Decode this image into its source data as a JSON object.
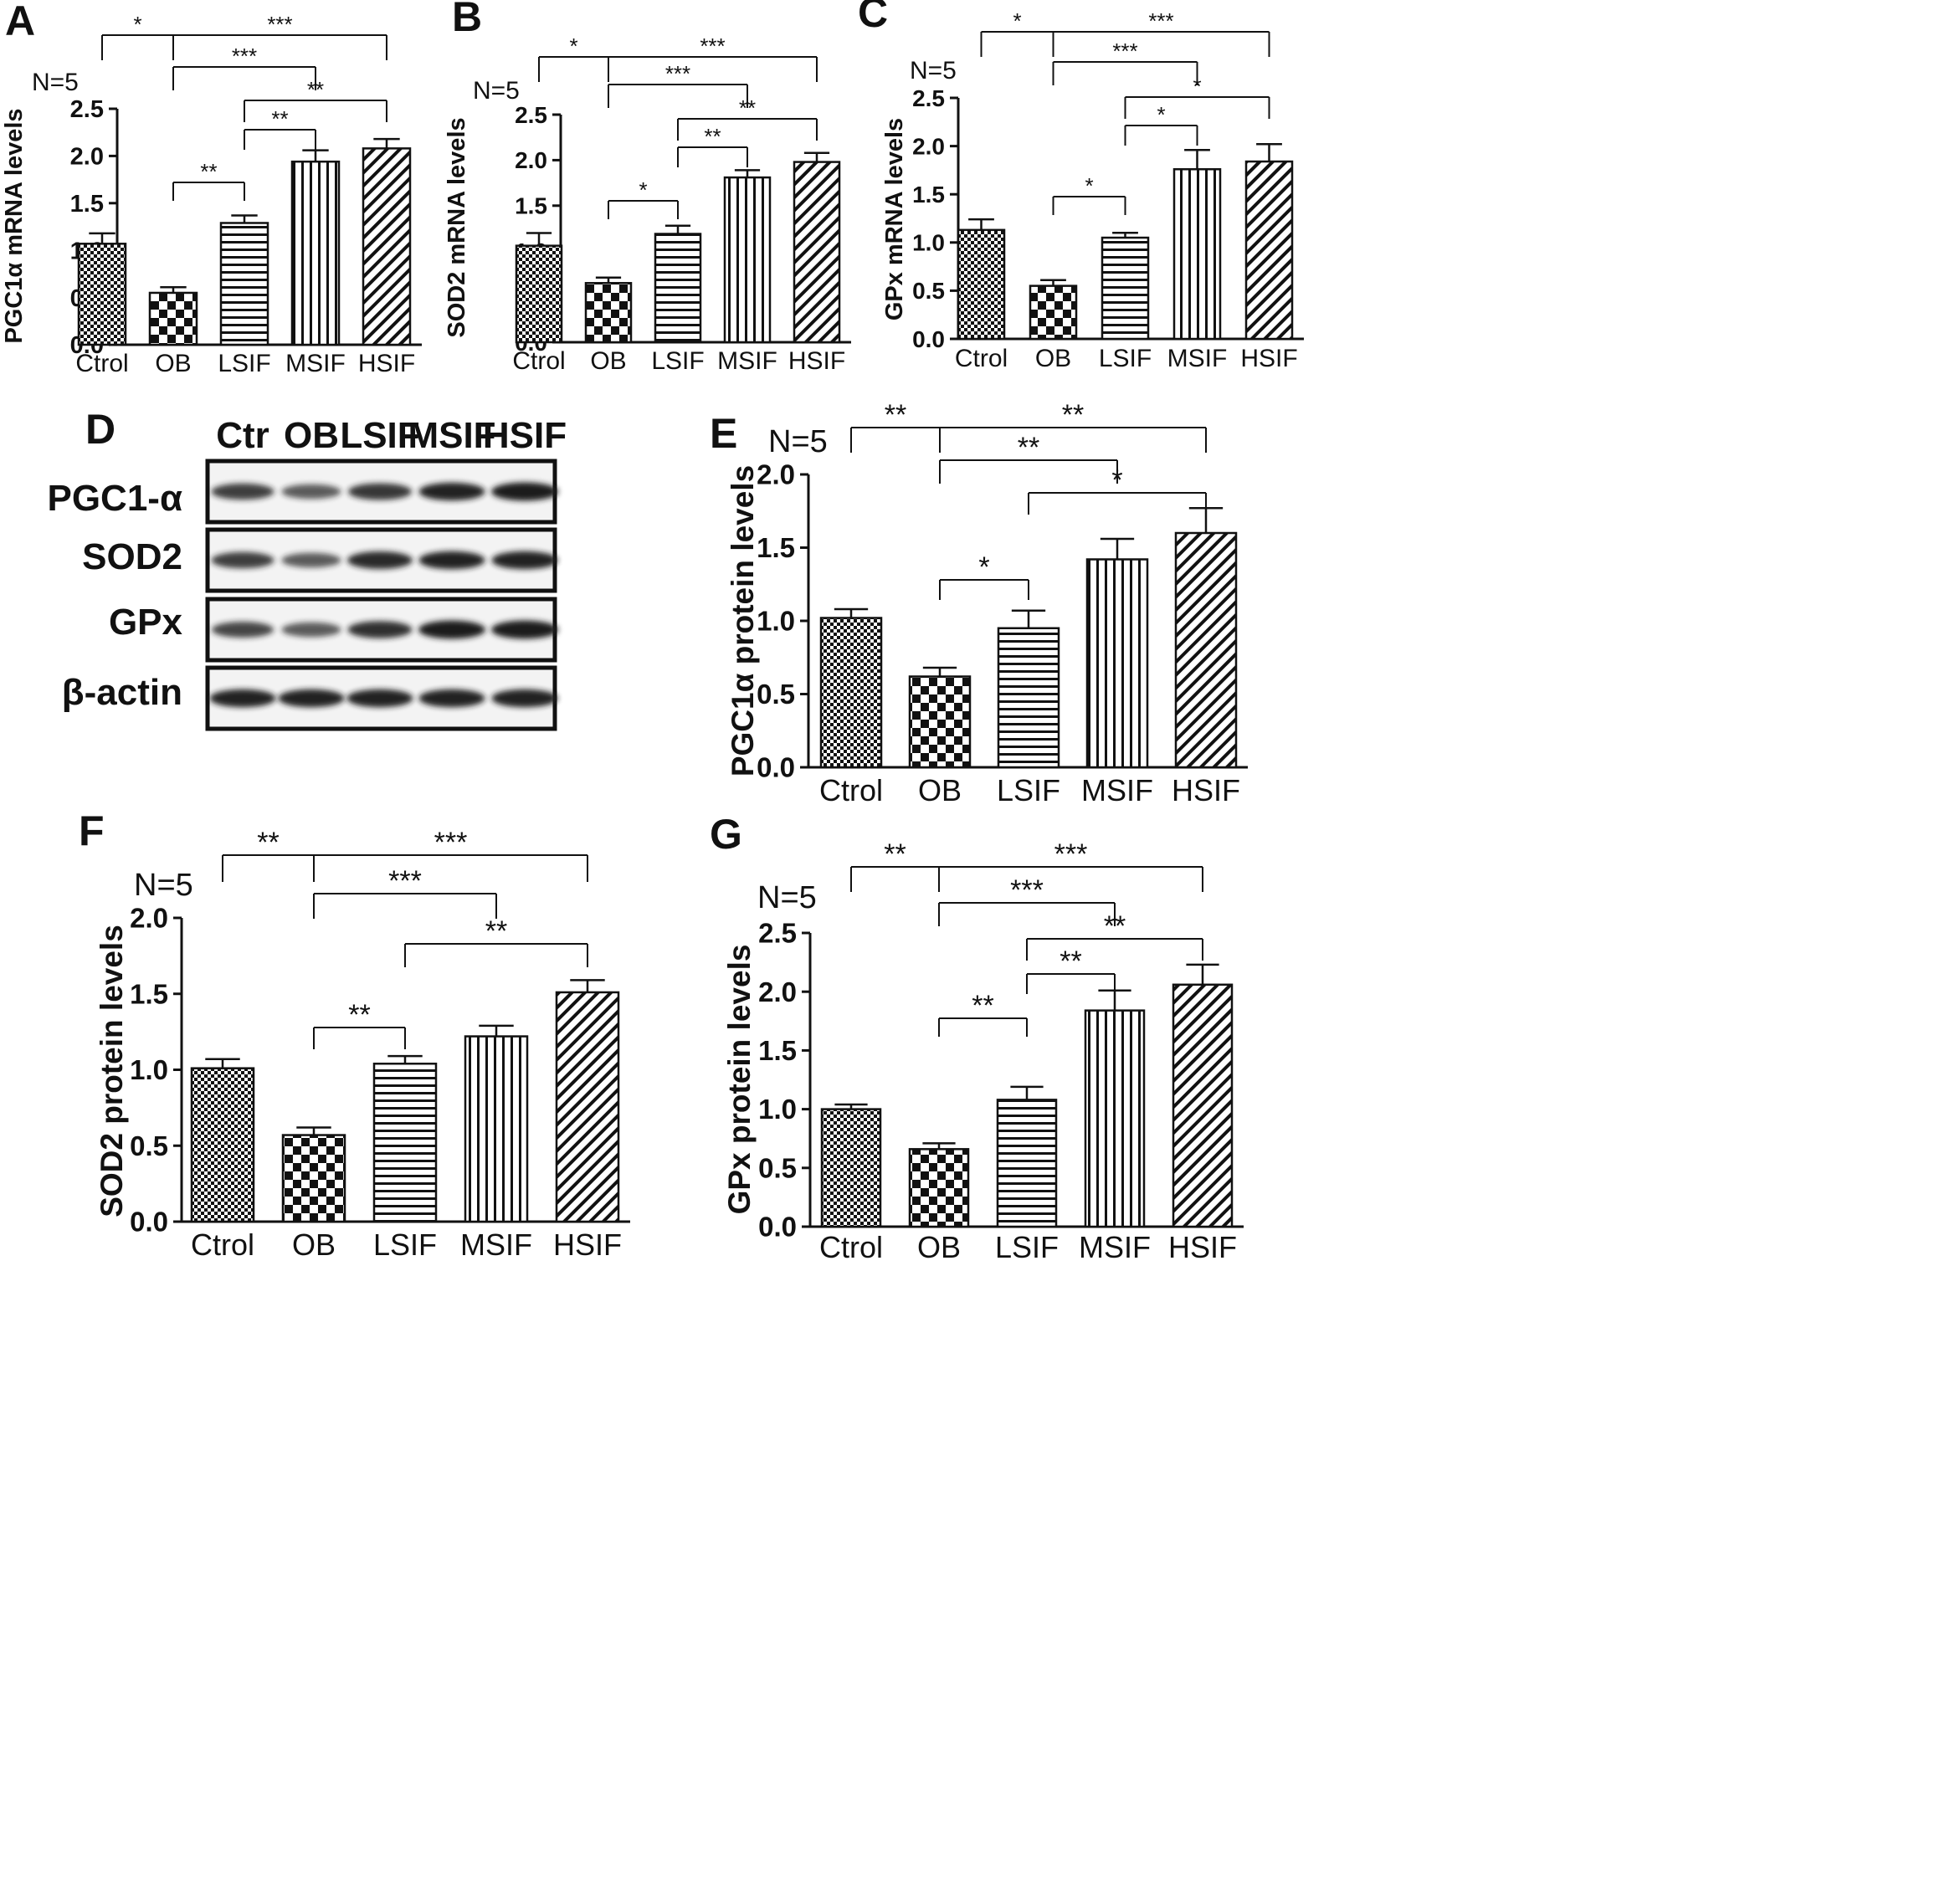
{
  "categories": [
    "Ctrol",
    "OB",
    "LSIF",
    "MSIF",
    "HSIF"
  ],
  "colors": {
    "ink": "#111111",
    "band": "#1c1c1c",
    "blot_bg": "#f3f3f3"
  },
  "chart_data": [
    {
      "panel": "A",
      "type": "bar",
      "categories": [
        "Ctrol",
        "OB",
        "LSIF",
        "MSIF",
        "HSIF"
      ],
      "values": [
        1.07,
        0.55,
        1.29,
        1.94,
        2.08
      ],
      "errors": [
        0.11,
        0.06,
        0.08,
        0.12,
        0.1
      ],
      "ylabel": "PGC1α mRNA levels",
      "ylim": [
        0,
        2.5
      ],
      "yticks": [
        "0.0",
        "0.5",
        "1.0",
        "1.5",
        "2.0",
        "2.5"
      ],
      "note": "N=5",
      "significance": [
        {
          "groups": [
            0,
            1,
            4
          ],
          "labels": [
            "*",
            "***"
          ]
        },
        {
          "groups": [
            1,
            3
          ],
          "labels": [
            "***"
          ]
        },
        {
          "groups": [
            2,
            4
          ],
          "labels": [
            "**"
          ]
        },
        {
          "groups": [
            2,
            3
          ],
          "labels": [
            "**"
          ]
        },
        {
          "groups": [
            1,
            2
          ],
          "labels": [
            "**"
          ]
        }
      ]
    },
    {
      "panel": "B",
      "type": "bar",
      "categories": [
        "Ctrol",
        "OB",
        "LSIF",
        "MSIF",
        "HSIF"
      ],
      "values": [
        1.06,
        0.65,
        1.19,
        1.81,
        1.98
      ],
      "errors": [
        0.14,
        0.06,
        0.09,
        0.08,
        0.1
      ],
      "ylabel": "SOD2 mRNA levels",
      "ylim": [
        0,
        2.5
      ],
      "yticks": [
        "0.0",
        "0.5",
        "1.0",
        "1.5",
        "2.0",
        "2.5"
      ],
      "note": "N=5",
      "significance": [
        {
          "groups": [
            0,
            1,
            4
          ],
          "labels": [
            "*",
            "***"
          ]
        },
        {
          "groups": [
            1,
            3
          ],
          "labels": [
            "***"
          ]
        },
        {
          "groups": [
            2,
            4
          ],
          "labels": [
            "**"
          ]
        },
        {
          "groups": [
            2,
            3
          ],
          "labels": [
            "**"
          ]
        },
        {
          "groups": [
            1,
            2
          ],
          "labels": [
            "*"
          ]
        }
      ]
    },
    {
      "panel": "C",
      "type": "bar",
      "categories": [
        "Ctrol",
        "OB",
        "LSIF",
        "MSIF",
        "HSIF"
      ],
      "values": [
        1.13,
        0.55,
        1.05,
        1.76,
        1.84
      ],
      "errors": [
        0.11,
        0.06,
        0.05,
        0.2,
        0.18
      ],
      "ylabel": "GPx mRNA levels",
      "ylim": [
        0,
        2.5
      ],
      "yticks": [
        "0.0",
        "0.5",
        "1.0",
        "1.5",
        "2.0",
        "2.5"
      ],
      "note": "N=5",
      "significance": [
        {
          "groups": [
            0,
            1,
            4
          ],
          "labels": [
            "*",
            "***"
          ]
        },
        {
          "groups": [
            1,
            3
          ],
          "labels": [
            "***"
          ]
        },
        {
          "groups": [
            2,
            4
          ],
          "labels": [
            "*"
          ]
        },
        {
          "groups": [
            2,
            3
          ],
          "labels": [
            "*"
          ]
        },
        {
          "groups": [
            1,
            2
          ],
          "labels": [
            "*"
          ]
        }
      ]
    },
    {
      "panel": "E",
      "type": "bar",
      "categories": [
        "Ctrol",
        "OB",
        "LSIF",
        "MSIF",
        "HSIF"
      ],
      "values": [
        1.02,
        0.62,
        0.95,
        1.42,
        1.6
      ],
      "errors": [
        0.06,
        0.06,
        0.12,
        0.14,
        0.17
      ],
      "ylabel": "PGC1α protein levels",
      "ylim": [
        0,
        2.0
      ],
      "yticks": [
        "0.0",
        "0.5",
        "1.0",
        "1.5",
        "2.0"
      ],
      "note": "N=5",
      "significance": [
        {
          "groups": [
            0,
            1,
            4
          ],
          "labels": [
            "**",
            "**"
          ]
        },
        {
          "groups": [
            1,
            3
          ],
          "labels": [
            "**"
          ]
        },
        {
          "groups": [
            2,
            4
          ],
          "labels": [
            "*"
          ]
        },
        {
          "groups": [
            1,
            2
          ],
          "labels": [
            "*"
          ]
        }
      ]
    },
    {
      "panel": "F",
      "type": "bar",
      "categories": [
        "Ctrol",
        "OB",
        "LSIF",
        "MSIF",
        "HSIF"
      ],
      "values": [
        1.01,
        0.57,
        1.04,
        1.22,
        1.51
      ],
      "errors": [
        0.06,
        0.05,
        0.05,
        0.07,
        0.08
      ],
      "ylabel": "SOD2 protein levels",
      "ylim": [
        0,
        2.0
      ],
      "yticks": [
        "0.0",
        "0.5",
        "1.0",
        "1.5",
        "2.0"
      ],
      "note": "N=5",
      "significance": [
        {
          "groups": [
            0,
            1,
            4
          ],
          "labels": [
            "**",
            "***"
          ]
        },
        {
          "groups": [
            1,
            3
          ],
          "labels": [
            "***"
          ]
        },
        {
          "groups": [
            2,
            4
          ],
          "labels": [
            "**"
          ]
        },
        {
          "groups": [
            1,
            2
          ],
          "labels": [
            "**"
          ]
        }
      ]
    },
    {
      "panel": "G",
      "type": "bar",
      "categories": [
        "Ctrol",
        "OB",
        "LSIF",
        "MSIF",
        "HSIF"
      ],
      "values": [
        1.0,
        0.66,
        1.08,
        1.84,
        2.06
      ],
      "errors": [
        0.04,
        0.05,
        0.11,
        0.17,
        0.17
      ],
      "ylabel": "GPx protein levels",
      "ylim": [
        0,
        2.5
      ],
      "yticks": [
        "0.0",
        "0.5",
        "1.0",
        "1.5",
        "2.0",
        "2.5"
      ],
      "note": "N=5",
      "significance": [
        {
          "groups": [
            0,
            1,
            4
          ],
          "labels": [
            "**",
            "***"
          ]
        },
        {
          "groups": [
            1,
            3
          ],
          "labels": [
            "***"
          ]
        },
        {
          "groups": [
            2,
            4
          ],
          "labels": [
            "**"
          ]
        },
        {
          "groups": [
            2,
            3
          ],
          "labels": [
            "**"
          ]
        },
        {
          "groups": [
            1,
            2
          ],
          "labels": [
            "**"
          ]
        }
      ]
    }
  ],
  "western_blot": {
    "panel": "D",
    "lanes": [
      "Ctr",
      "OB",
      "LSIF",
      "MSIF",
      "HSIF"
    ],
    "rows": [
      {
        "label": "PGC1-α",
        "intensity": [
          0.75,
          0.55,
          0.8,
          0.95,
          1.0
        ]
      },
      {
        "label": "SOD2",
        "intensity": [
          0.75,
          0.55,
          0.9,
          0.95,
          0.95
        ]
      },
      {
        "label": "GPx",
        "intensity": [
          0.7,
          0.55,
          0.85,
          1.0,
          1.0
        ]
      },
      {
        "label": "β-actin",
        "intensity": [
          0.95,
          0.95,
          0.95,
          0.95,
          0.95
        ]
      }
    ]
  }
}
